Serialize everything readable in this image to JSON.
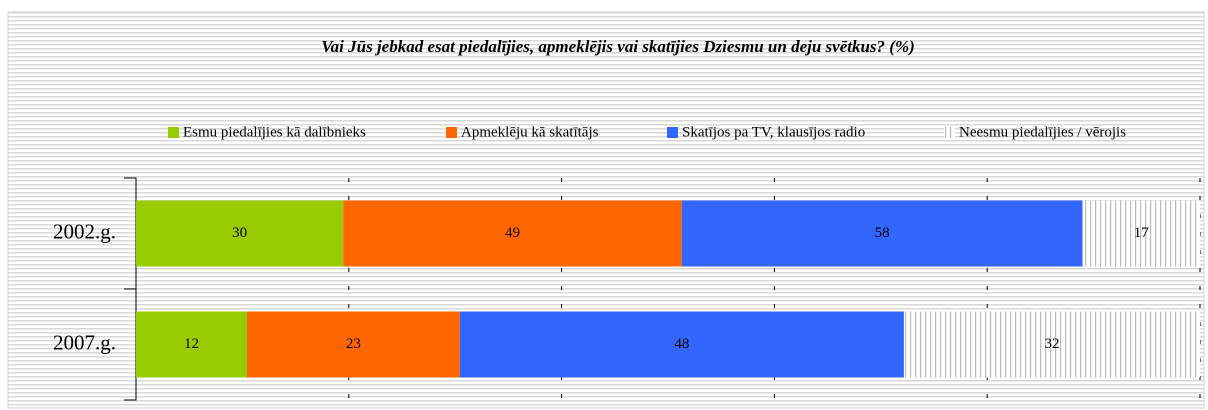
{
  "chart_data": {
    "type": "bar",
    "orientation": "horizontal",
    "stacking": "percent",
    "title": "Vai Jūs jebkad esat piedalījies, apmeklējis vai skatījies Dziesmu un deju svētkus?  (%)",
    "categories": [
      "2002.g.",
      "2007.g."
    ],
    "series": [
      {
        "name": "Esmu piedalījies kā dalībnieks",
        "color": "#99cc00",
        "values": [
          30,
          12
        ]
      },
      {
        "name": "Apmeklēju kā skatītājs",
        "color": "#ff6600",
        "values": [
          49,
          23
        ]
      },
      {
        "name": "Skatījos pa TV, klausījos radio",
        "color": "#3366ff",
        "values": [
          58,
          48
        ]
      },
      {
        "name": "Neesmu piedalījies / vērojis",
        "color": "#ffffff",
        "values": [
          17,
          32
        ]
      }
    ],
    "xlim": [
      0,
      100
    ],
    "xticks": [
      0,
      20,
      40,
      60,
      80,
      100
    ],
    "grid": true,
    "legend": "top"
  }
}
